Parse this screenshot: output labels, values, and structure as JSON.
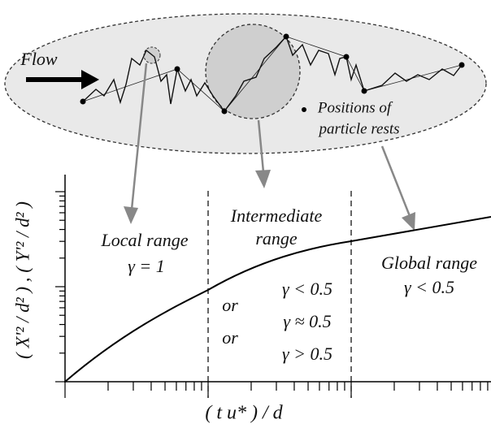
{
  "flow_label": "Flow",
  "legend": [
    "Positions of",
    "particle rests"
  ],
  "regions": [
    {
      "title": [
        "Local range"
      ],
      "conditions": [
        "γ = 1"
      ]
    },
    {
      "title": [
        "Intermediate",
        "range"
      ],
      "conditions": [
        "γ < 0.5",
        "γ ≈ 0.5",
        "γ > 0.5"
      ],
      "connectors": [
        "or",
        "or"
      ]
    },
    {
      "title": [
        "Global range"
      ],
      "conditions": [
        "γ < 0.5"
      ]
    }
  ],
  "axes": {
    "x_label": "( t u* ) / d",
    "y_label": "( X'² / d² ) , ( Y'² / d² )"
  }
}
